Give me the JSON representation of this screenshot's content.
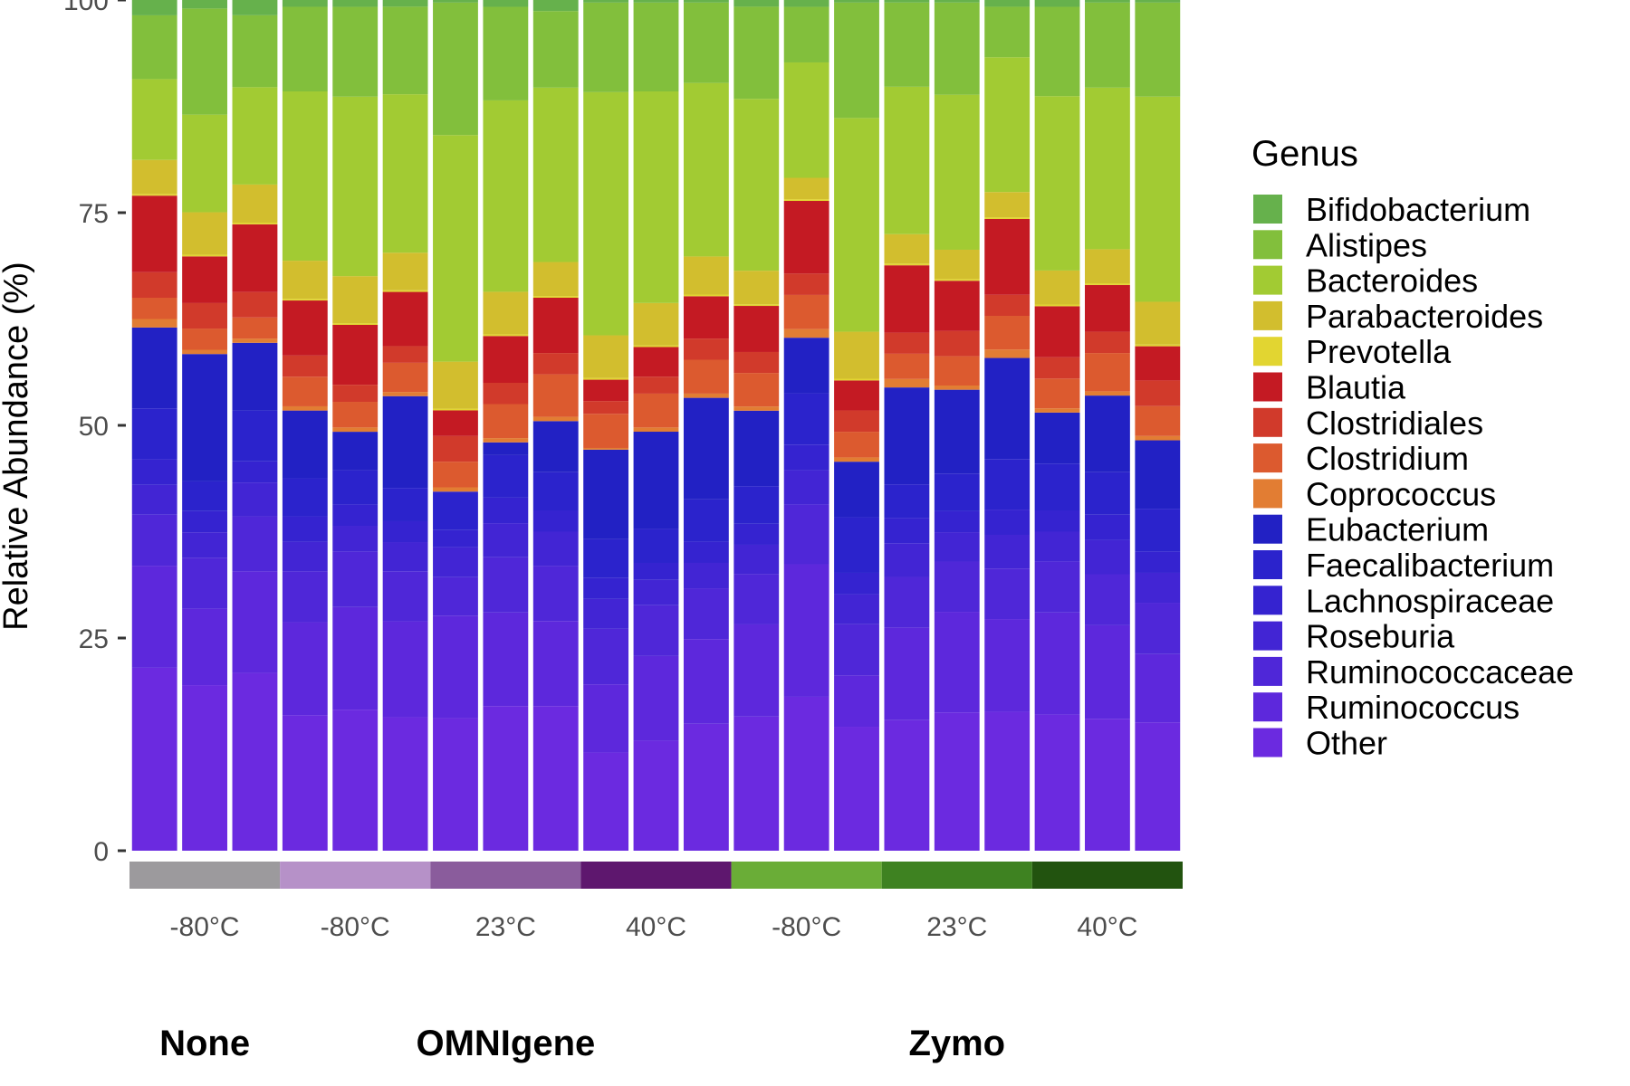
{
  "chart_data": {
    "type": "bar",
    "stacked": true,
    "ylabel": "Relative Abundance (%)",
    "ylim": [
      0,
      100
    ],
    "yticks": [
      0,
      25,
      50,
      75,
      100
    ],
    "legend": {
      "title": "Genus",
      "placement": "right",
      "items": [
        {
          "name": "Bifidobacterium",
          "color": "#66b14c"
        },
        {
          "name": "Alistipes",
          "color": "#82bf3c"
        },
        {
          "name": "Bacteroides",
          "color": "#a2cb33"
        },
        {
          "name": "Parabacteroides",
          "color": "#d2be2e"
        },
        {
          "name": "Prevotella",
          "color": "#e2d531"
        },
        {
          "name": "Blautia",
          "color": "#c41a23"
        },
        {
          "name": "Clostridiales",
          "color": "#d13a2b"
        },
        {
          "name": "Clostridium",
          "color": "#dc5a2f"
        },
        {
          "name": "Coprococcus",
          "color": "#e27d33"
        },
        {
          "name": "Eubacterium",
          "color": "#2221c4"
        },
        {
          "name": "Faecalibacterium",
          "color": "#2b23cc"
        },
        {
          "name": "Lachnospiraceae",
          "color": "#3523d0"
        },
        {
          "name": "Roseburia",
          "color": "#4225d4"
        },
        {
          "name": "Ruminococcaceae",
          "color": "#4f27d8"
        },
        {
          "name": "Ruminococcus",
          "color": "#5d28dc"
        },
        {
          "name": "Other",
          "color": "#6b2ae0"
        }
      ]
    },
    "samples": 21,
    "series": [
      {
        "name": "Other",
        "values": [
          21.5,
          19.5,
          21,
          16,
          16.5,
          16,
          15.5,
          17,
          17,
          11.5,
          13,
          15,
          16,
          18,
          14.5,
          15.5,
          16.5,
          16.5,
          16,
          15.5,
          15
        ]
      },
      {
        "name": "Ruminococcus",
        "values": [
          12,
          9,
          12,
          11,
          12,
          11.5,
          12,
          11,
          10,
          8,
          10,
          10,
          11,
          15.5,
          6,
          11,
          12,
          11,
          12,
          11,
          8
        ]
      },
      {
        "name": "Ruminococcaceae",
        "values": [
          6,
          6,
          6.5,
          6,
          6.5,
          6,
          4.5,
          6.5,
          6.5,
          6.5,
          6,
          6,
          6,
          7,
          6,
          6,
          6,
          6,
          6,
          6,
          6
        ]
      },
      {
        "name": "Roseburia",
        "values": [
          3.5,
          3,
          4,
          3.5,
          3,
          3.5,
          3.5,
          4,
          4,
          3.5,
          3,
          3,
          3.5,
          4,
          3.5,
          4,
          3.5,
          4,
          3.5,
          4,
          3.5
        ]
      },
      {
        "name": "Lachnospiraceae",
        "values": [
          3,
          2.5,
          2.5,
          3,
          2.5,
          2.5,
          2,
          3,
          2.5,
          2.5,
          2,
          2.5,
          2.5,
          3,
          2.5,
          3,
          2.5,
          3,
          2.5,
          3,
          2.5
        ]
      },
      {
        "name": "Faecalibacterium",
        "values": [
          6,
          3.5,
          6,
          4.5,
          4,
          4,
          4.5,
          5,
          4.5,
          4.5,
          4,
          5,
          4.5,
          6,
          6.5,
          4,
          4.5,
          6,
          5.5,
          5,
          5
        ]
      },
      {
        "name": "Eubacterium",
        "values": [
          9.5,
          15,
          8,
          8,
          4.5,
          11,
          0,
          1.5,
          6,
          10.5,
          11.5,
          12,
          9,
          6.5,
          6.5,
          11.5,
          10,
          12,
          6,
          9,
          8
        ]
      },
      {
        "name": "Coprococcus",
        "values": [
          1,
          0.5,
          0.5,
          0.5,
          0.5,
          0.5,
          0.5,
          0.5,
          0.5,
          0.2,
          0.5,
          0.5,
          0.5,
          1,
          0.5,
          1,
          0.5,
          1,
          0.5,
          0.5,
          0.5
        ]
      },
      {
        "name": "Clostridium",
        "values": [
          2.5,
          2.5,
          2.5,
          3.5,
          3,
          3.5,
          3,
          4,
          5,
          4,
          4,
          4,
          4,
          4,
          3,
          3,
          3.5,
          4,
          3.5,
          4.5,
          3.5
        ]
      },
      {
        "name": "Clostridiales",
        "values": [
          3,
          3,
          3,
          2.5,
          2,
          2,
          3,
          2.5,
          2.5,
          1.5,
          2,
          2.5,
          2.5,
          2.5,
          2.5,
          2.5,
          3,
          2.5,
          2.5,
          2.5,
          3
        ]
      },
      {
        "name": "Blautia",
        "values": [
          9,
          5.5,
          8,
          6.5,
          7,
          6.5,
          3,
          5.5,
          6.5,
          2.5,
          3.5,
          5,
          5.5,
          8.5,
          3.5,
          8,
          6,
          9,
          6,
          5.5,
          4
        ]
      },
      {
        "name": "Prevotella",
        "values": [
          0.2,
          0.2,
          0.2,
          0.2,
          0.2,
          0.2,
          0.2,
          0.2,
          0.2,
          0.2,
          0.2,
          0.2,
          0.2,
          0.2,
          0.2,
          0.2,
          0.2,
          0.2,
          0.2,
          0.2,
          0.2
        ]
      },
      {
        "name": "Parabacteroides",
        "values": [
          4,
          5,
          4.5,
          4.5,
          5.5,
          4.5,
          5.5,
          5,
          4,
          5,
          5,
          4.5,
          4,
          2.5,
          5.5,
          3.5,
          3.5,
          3,
          4,
          4,
          5
        ]
      },
      {
        "name": "Bacteroides",
        "values": [
          9.5,
          11.5,
          11.5,
          20,
          21,
          19,
          26.5,
          22.5,
          20.5,
          28.5,
          25,
          20.5,
          20.5,
          13.5,
          25,
          17.5,
          18.5,
          16,
          20.5,
          19,
          24
        ]
      },
      {
        "name": "Alistipes",
        "values": [
          7.5,
          12.5,
          8.5,
          10,
          10.5,
          10.5,
          15.5,
          11,
          9,
          10.5,
          10.5,
          9.5,
          11,
          6.5,
          13.5,
          10,
          11,
          6,
          10.5,
          10,
          11
        ]
      },
      {
        "name": "Bifidobacterium",
        "values": [
          1.8,
          1,
          1.8,
          0.8,
          0.8,
          0.8,
          0.3,
          0.8,
          1.3,
          0.3,
          0.3,
          0.3,
          0.8,
          0.8,
          0.3,
          0.3,
          0.3,
          0.8,
          0.8,
          0.3,
          0.3
        ]
      }
    ],
    "conditions": [
      {
        "label": "-80°C",
        "color": "#9c9a9d",
        "from": 0,
        "to": 3
      },
      {
        "label": "-80°C",
        "color": "#b691c8",
        "from": 3,
        "to": 6
      },
      {
        "label": "23°C",
        "color": "#8a5c9c",
        "from": 6,
        "to": 9
      },
      {
        "label": "40°C",
        "color": "#5e176e",
        "from": 9,
        "to": 12
      },
      {
        "label": "-80°C",
        "color": "#6aad37",
        "from": 12,
        "to": 15
      },
      {
        "label": "23°C",
        "color": "#3e8221",
        "from": 15,
        "to": 18
      },
      {
        "label": "40°C",
        "color": "#22530f",
        "from": 18,
        "to": 21
      }
    ],
    "groups": [
      {
        "label": "None",
        "from": 0,
        "to": 3
      },
      {
        "label": "OMNIgene",
        "from": 3,
        "to": 12
      },
      {
        "label": "Zymo",
        "from": 12,
        "to": 21
      }
    ]
  }
}
